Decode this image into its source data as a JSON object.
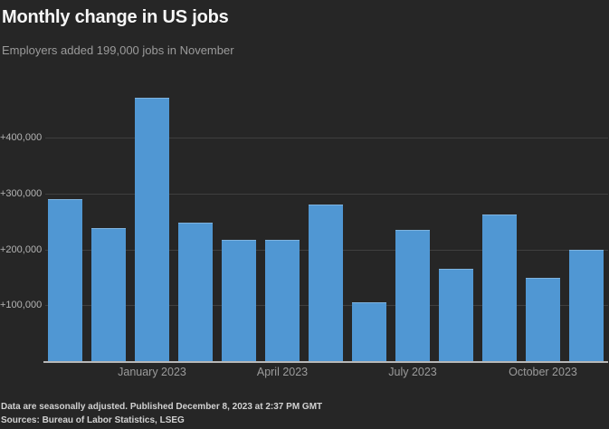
{
  "header": {
    "title": "Monthly change in US jobs",
    "subtitle": "Employers added 199,000 jobs in November"
  },
  "footer": {
    "note": "Data are seasonally adjusted. Published December 8, 2023 at 2:37 PM GMT",
    "sources": "Sources: Bureau of Labor Statistics, LSEG"
  },
  "chart_data": {
    "type": "bar",
    "title": "Monthly change in US jobs",
    "subtitle": "Employers added 199,000 jobs in November",
    "x": [
      "Nov 2022",
      "Dec 2022",
      "Jan 2023",
      "Feb 2023",
      "Mar 2023",
      "Apr 2023",
      "May 2023",
      "Jun 2023",
      "Jul 2023",
      "Aug 2023",
      "Sep 2023",
      "Oct 2023",
      "Nov 2023"
    ],
    "values": [
      290000,
      239000,
      472000,
      248000,
      217000,
      217000,
      281000,
      105000,
      236000,
      165000,
      262000,
      150000,
      199000
    ],
    "x_tick_labels": [
      {
        "label": "January 2023",
        "bar_index": 2
      },
      {
        "label": "April 2023",
        "bar_index": 5
      },
      {
        "label": "July 2023",
        "bar_index": 8
      },
      {
        "label": "October 2023",
        "bar_index": 11
      }
    ],
    "y_ticks": [
      {
        "label": "+100,000",
        "value": 100000
      },
      {
        "label": "+200,000",
        "value": 200000
      },
      {
        "label": "+300,000",
        "value": 300000
      },
      {
        "label": "+400,000",
        "value": 400000
      }
    ],
    "ylim": [
      0,
      485000
    ],
    "xlabel": "",
    "ylabel": "",
    "grid": true,
    "legend": false,
    "colors": {
      "background": "#262626",
      "bar": "#5097d3",
      "bar_edge": "#7fb3de",
      "gridline": "#3f3f3f",
      "baseline": "#b7b7b7",
      "title_text": "#f7f7f7",
      "muted_text": "#9b9b9b",
      "tick_text": "#b4b4b4",
      "footer_text": "#d2d2d2"
    }
  }
}
